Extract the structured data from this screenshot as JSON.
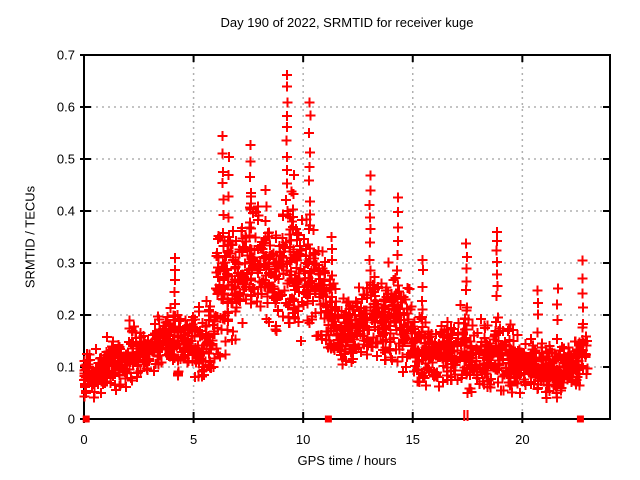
{
  "title": "Day 190 of 2022, SRMTID for receiver kuge",
  "x_axis": {
    "label": "GPS time / hours",
    "min": 0,
    "max": 24,
    "ticks": [
      {
        "v": 0,
        "label": "0"
      },
      {
        "v": 5,
        "label": "5"
      },
      {
        "v": 10,
        "label": "10"
      },
      {
        "v": 15,
        "label": "15"
      },
      {
        "v": 20,
        "label": "20"
      }
    ],
    "grid_at": [
      5,
      10,
      15,
      20
    ]
  },
  "y_axis": {
    "label": "SRMTID / TECUs",
    "min": 0,
    "max": 0.7,
    "ticks": [
      {
        "v": 0.0,
        "label": "0"
      },
      {
        "v": 0.1,
        "label": "0.1"
      },
      {
        "v": 0.2,
        "label": "0.2"
      },
      {
        "v": 0.3,
        "label": "0.3"
      },
      {
        "v": 0.4,
        "label": "0.4"
      },
      {
        "v": 0.5,
        "label": "0.5"
      },
      {
        "v": 0.6,
        "label": "0.6"
      },
      {
        "v": 0.7,
        "label": "0.7"
      }
    ],
    "grid_at": [
      0.1,
      0.2,
      0.3,
      0.4,
      0.5,
      0.6
    ]
  },
  "colors": {
    "points": "#ff0000",
    "grid": "#b0b0b0",
    "axis": "#000000",
    "text": "#000000",
    "background": "#ffffff"
  },
  "chart_data": {
    "type": "scatter",
    "marker": "plus",
    "series_name": "SRMTID",
    "x_range": [
      0,
      24
    ],
    "y_range": [
      0,
      0.7
    ],
    "grid": true,
    "legend": "none",
    "peak": {
      "t": 9.25,
      "value": 0.66
    },
    "profile_format": [
      "t_start",
      "t_end",
      "center",
      "min",
      "max",
      "marker_count"
    ],
    "density_profile": [
      [
        0.0,
        0.5,
        0.085,
        0.04,
        0.15,
        42
      ],
      [
        0.5,
        1.0,
        0.09,
        0.05,
        0.14,
        42
      ],
      [
        1.0,
        1.5,
        0.1,
        0.05,
        0.18,
        42
      ],
      [
        1.5,
        2.0,
        0.1,
        0.06,
        0.16,
        42
      ],
      [
        2.0,
        2.5,
        0.12,
        0.07,
        0.22,
        42
      ],
      [
        2.5,
        3.0,
        0.13,
        0.08,
        0.19,
        42
      ],
      [
        3.0,
        3.5,
        0.14,
        0.09,
        0.21,
        42
      ],
      [
        3.5,
        4.0,
        0.15,
        0.09,
        0.22,
        42
      ],
      [
        4.0,
        4.5,
        0.15,
        0.08,
        0.25,
        40
      ],
      [
        4.5,
        5.0,
        0.15,
        0.1,
        0.22,
        38
      ],
      [
        5.0,
        5.5,
        0.14,
        0.08,
        0.24,
        38
      ],
      [
        5.5,
        6.0,
        0.16,
        0.09,
        0.28,
        38
      ],
      [
        6.0,
        6.5,
        0.24,
        0.12,
        0.42,
        46
      ],
      [
        6.5,
        7.0,
        0.27,
        0.15,
        0.46,
        46
      ],
      [
        7.0,
        7.5,
        0.27,
        0.17,
        0.4,
        42
      ],
      [
        7.5,
        8.0,
        0.3,
        0.18,
        0.46,
        42
      ],
      [
        8.0,
        8.5,
        0.28,
        0.16,
        0.42,
        40
      ],
      [
        8.5,
        9.0,
        0.26,
        0.15,
        0.38,
        38
      ],
      [
        9.0,
        9.5,
        0.3,
        0.17,
        0.5,
        44
      ],
      [
        9.5,
        10.0,
        0.29,
        0.15,
        0.46,
        42
      ],
      [
        10.0,
        10.5,
        0.28,
        0.14,
        0.46,
        42
      ],
      [
        10.5,
        11.0,
        0.24,
        0.12,
        0.38,
        40
      ],
      [
        11.0,
        11.5,
        0.19,
        0.1,
        0.32,
        42
      ],
      [
        11.5,
        12.0,
        0.17,
        0.1,
        0.28,
        42
      ],
      [
        12.0,
        12.5,
        0.17,
        0.1,
        0.27,
        42
      ],
      [
        12.5,
        13.0,
        0.19,
        0.11,
        0.31,
        42
      ],
      [
        13.0,
        13.5,
        0.2,
        0.11,
        0.35,
        42
      ],
      [
        13.5,
        14.0,
        0.19,
        0.1,
        0.33,
        42
      ],
      [
        14.0,
        14.5,
        0.2,
        0.11,
        0.36,
        42
      ],
      [
        14.5,
        15.0,
        0.17,
        0.09,
        0.28,
        42
      ],
      [
        15.0,
        15.5,
        0.14,
        0.07,
        0.27,
        42
      ],
      [
        15.5,
        16.0,
        0.13,
        0.06,
        0.22,
        42
      ],
      [
        16.0,
        16.5,
        0.12,
        0.05,
        0.2,
        42
      ],
      [
        16.5,
        17.0,
        0.12,
        0.05,
        0.22,
        42
      ],
      [
        17.0,
        17.5,
        0.13,
        0.05,
        0.26,
        42
      ],
      [
        17.5,
        18.0,
        0.11,
        0.05,
        0.2,
        42
      ],
      [
        18.0,
        18.5,
        0.12,
        0.06,
        0.22,
        42
      ],
      [
        18.5,
        19.0,
        0.13,
        0.06,
        0.26,
        42
      ],
      [
        19.0,
        19.5,
        0.12,
        0.05,
        0.21,
        42
      ],
      [
        19.5,
        20.0,
        0.11,
        0.05,
        0.19,
        42
      ],
      [
        20.0,
        20.5,
        0.105,
        0.05,
        0.18,
        42
      ],
      [
        20.5,
        21.0,
        0.1,
        0.04,
        0.17,
        42
      ],
      [
        21.0,
        21.5,
        0.095,
        0.03,
        0.17,
        42
      ],
      [
        21.5,
        22.0,
        0.09,
        0.04,
        0.16,
        42
      ],
      [
        22.0,
        22.5,
        0.1,
        0.04,
        0.19,
        40
      ],
      [
        22.5,
        23.0,
        0.12,
        0.05,
        0.22,
        34
      ]
    ],
    "spike_format": [
      "t",
      "y_min",
      "y_max",
      "marker_count"
    ],
    "spikes": [
      [
        4.15,
        0.2,
        0.31,
        6
      ],
      [
        6.35,
        0.3,
        0.54,
        9
      ],
      [
        6.6,
        0.28,
        0.5,
        7
      ],
      [
        7.6,
        0.3,
        0.53,
        8
      ],
      [
        8.3,
        0.28,
        0.44,
        6
      ],
      [
        9.25,
        0.4,
        0.66,
        11
      ],
      [
        9.55,
        0.33,
        0.47,
        5
      ],
      [
        10.3,
        0.36,
        0.61,
        9
      ],
      [
        11.3,
        0.25,
        0.35,
        5
      ],
      [
        13.05,
        0.28,
        0.47,
        8
      ],
      [
        14.3,
        0.26,
        0.42,
        7
      ],
      [
        15.45,
        0.2,
        0.31,
        5
      ],
      [
        17.45,
        0.22,
        0.34,
        6
      ],
      [
        18.85,
        0.24,
        0.36,
        7
      ],
      [
        20.7,
        0.17,
        0.25,
        4
      ],
      [
        21.6,
        0.16,
        0.25,
        4
      ],
      [
        22.75,
        0.1,
        0.3,
        8
      ]
    ],
    "zero_line_markers": {
      "square_t": [
        0.1,
        11.15,
        22.65
      ],
      "tick_t": [
        17.35,
        17.5
      ]
    }
  }
}
